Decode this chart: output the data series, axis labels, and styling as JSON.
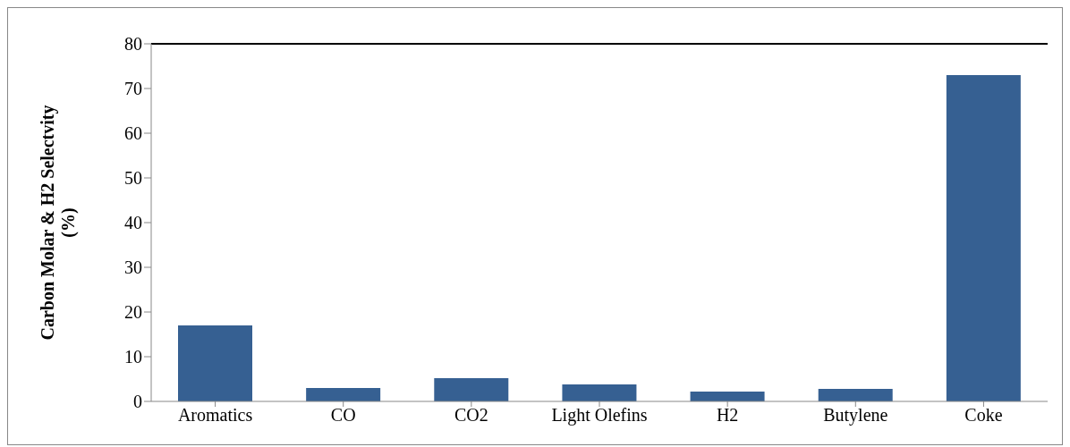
{
  "chart_data": {
    "type": "bar",
    "ylabel": "Carbon Molar & H2 Selectvity (%)",
    "categories": [
      "Aromatics",
      "CO",
      "CO2",
      "Light Olefins",
      "H2",
      "Butylene",
      "Coke"
    ],
    "values": [
      17,
      3,
      5.2,
      3.8,
      2.2,
      2.8,
      73
    ],
    "color": "#366092",
    "ylim": [
      0,
      80
    ],
    "yticks": [
      0,
      10,
      20,
      30,
      40,
      50,
      60,
      70,
      80
    ],
    "grid": false,
    "legend": false
  }
}
